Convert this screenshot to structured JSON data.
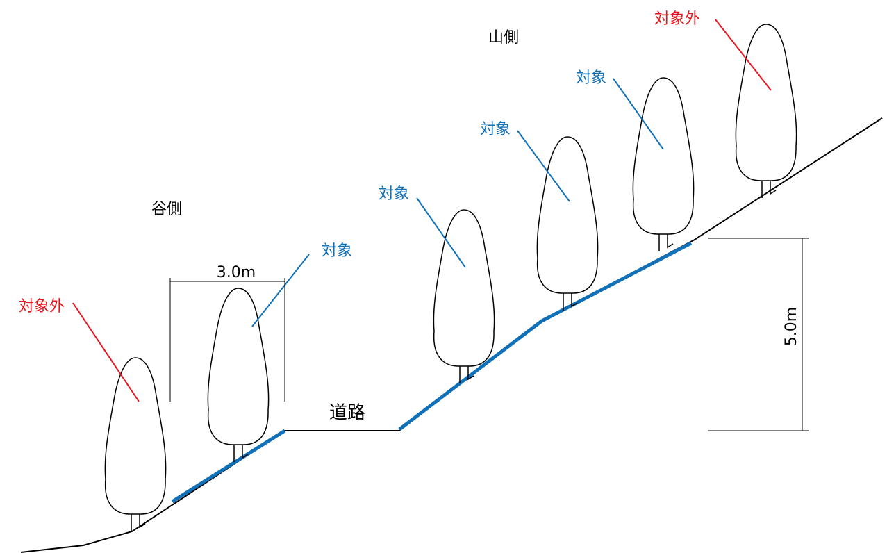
{
  "sides": {
    "mountain": "山側",
    "valley": "谷側"
  },
  "road": "道路",
  "dimensions": {
    "width": "3.0m",
    "height": "5.0m"
  },
  "trees": [
    {
      "label": "対象外"
    },
    {
      "label": "対象"
    },
    {
      "label": "対象"
    },
    {
      "label": "対象"
    },
    {
      "label": "対象"
    },
    {
      "label": "対象外"
    }
  ]
}
